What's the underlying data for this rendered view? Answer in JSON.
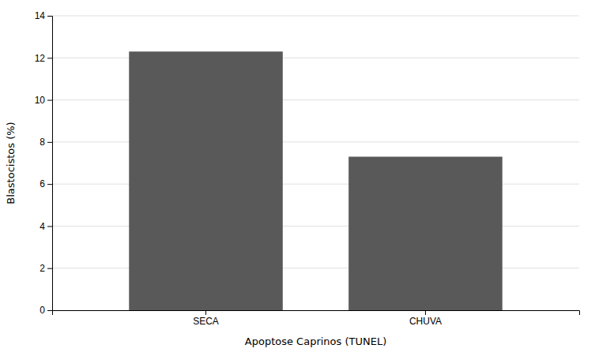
{
  "chart_data": {
    "type": "bar",
    "categories": [
      "SECA",
      "CHUVA"
    ],
    "values": [
      12.3,
      7.3
    ],
    "color": "#595959",
    "xlabel": "Apoptose Caprinos (TUNEL)",
    "ylabel": "Blastocistos (%)",
    "ylim": [
      0,
      14
    ],
    "yticks": [
      0,
      2,
      4,
      6,
      8,
      10,
      12,
      14
    ],
    "grid": true
  }
}
